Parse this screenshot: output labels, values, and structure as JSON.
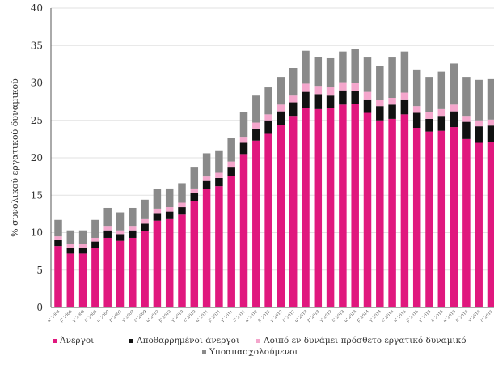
{
  "chart_data": {
    "type": "bar",
    "stacked": true,
    "title": "",
    "ylabel": "% συνολικού εργατικού δυναμικού",
    "xlabel": "",
    "ylim": [
      0,
      40
    ],
    "yticks": [
      0,
      5,
      10,
      15,
      20,
      25,
      30,
      35,
      40
    ],
    "grid": "horizontal",
    "legend_position": "bottom",
    "categories": [
      "α' 2008",
      "β' 2008",
      "γ' 2008",
      "δ' 2008",
      "α' 2009",
      "β' 2009",
      "γ' 2009",
      "δ' 2009",
      "α' 2010",
      "β' 2010",
      "γ' 2010",
      "δ' 2010",
      "α' 2011",
      "β' 2011",
      "γ' 2011",
      "δ' 2011",
      "α' 2012",
      "β' 2012",
      "γ' 2012",
      "δ' 2012",
      "α' 2013",
      "β' 2013",
      "γ' 2013",
      "δ' 2013",
      "α' 2014",
      "β' 2014",
      "γ' 2014",
      "δ' 2014",
      "α' 2015",
      "β' 2015",
      "γ' 2015",
      "δ' 2015",
      "α' 2016",
      "β' 2016",
      "γ' 2016",
      "δ' 2016"
    ],
    "series": [
      {
        "name": "Άνεργοι",
        "color": "#e0187e",
        "values": [
          8.2,
          7.2,
          7.2,
          7.9,
          9.3,
          8.9,
          9.3,
          10.2,
          11.6,
          11.8,
          12.4,
          14.2,
          15.8,
          16.2,
          17.6,
          20.5,
          22.3,
          23.3,
          24.4,
          25.6,
          26.7,
          26.5,
          26.6,
          27.1,
          27.2,
          26.0,
          25.0,
          25.2,
          25.8,
          24.0,
          23.5,
          23.6,
          24.1,
          22.5,
          22.0,
          22.1
        ]
      },
      {
        "name": "Αποθαρρημένοι άνεργοι",
        "color": "#111111",
        "values": [
          0.8,
          0.8,
          0.8,
          0.9,
          1.0,
          0.9,
          1.0,
          1.0,
          1.0,
          1.0,
          1.0,
          1.1,
          1.1,
          1.1,
          1.2,
          1.5,
          1.6,
          1.7,
          1.8,
          1.8,
          2.1,
          2.0,
          1.7,
          1.9,
          1.7,
          1.8,
          1.9,
          1.9,
          2.0,
          2.0,
          1.7,
          2.0,
          2.1,
          2.3,
          2.2,
          2.2
        ]
      },
      {
        "name": "Λοιπό εν δυνάμει πρόσθετο εργατικό δυναμικό",
        "color": "#f4a6cc",
        "values": [
          0.5,
          0.5,
          0.5,
          0.5,
          0.6,
          0.5,
          0.6,
          0.6,
          0.6,
          0.6,
          0.6,
          0.6,
          0.6,
          0.7,
          0.7,
          0.8,
          0.8,
          0.8,
          0.9,
          0.9,
          1.1,
          1.1,
          1.1,
          1.1,
          1.1,
          1.0,
          0.8,
          0.9,
          0.9,
          0.9,
          0.9,
          0.9,
          0.9,
          0.8,
          0.8,
          0.8
        ]
      },
      {
        "name": "Υποαπασχολούμενοι",
        "color": "#8a8a8a",
        "values": [
          2.2,
          1.8,
          1.8,
          2.4,
          2.4,
          2.4,
          2.4,
          2.6,
          2.6,
          2.5,
          2.6,
          2.9,
          3.1,
          3.0,
          3.1,
          3.3,
          3.6,
          3.6,
          3.7,
          3.7,
          4.4,
          3.9,
          3.9,
          4.1,
          4.5,
          4.6,
          4.6,
          5.4,
          5.5,
          4.9,
          4.7,
          5.0,
          5.5,
          5.2,
          5.4,
          5.4
        ]
      }
    ]
  }
}
